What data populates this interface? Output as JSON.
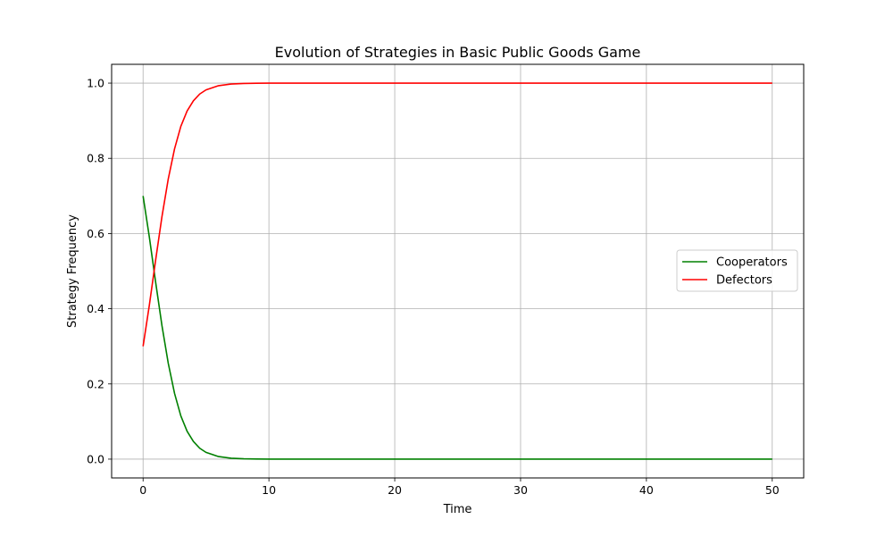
{
  "chart_data": {
    "type": "line",
    "title": "Evolution of Strategies in Basic Public Goods Game",
    "xlabel": "Time",
    "ylabel": "Strategy Frequency",
    "xlim": [
      -2.5,
      52.5
    ],
    "ylim": [
      -0.05,
      1.05
    ],
    "xticks": [
      "0",
      "10",
      "20",
      "30",
      "40",
      "50"
    ],
    "yticks": [
      "0.0",
      "0.2",
      "0.4",
      "0.6",
      "0.8",
      "1.0"
    ],
    "grid": true,
    "legend_position": "center-right",
    "series": [
      {
        "name": "Cooperators",
        "color": "#008000",
        "x": [
          0,
          0.5,
          1,
          1.5,
          2,
          2.5,
          3,
          3.5,
          4,
          4.5,
          5,
          6,
          7,
          8,
          9,
          10,
          12,
          15,
          20,
          25,
          30,
          35,
          40,
          45,
          50
        ],
        "y": [
          0.7,
          0.59,
          0.47,
          0.355,
          0.255,
          0.175,
          0.115,
          0.074,
          0.047,
          0.029,
          0.018,
          0.0068,
          0.0025,
          0.0009,
          0.0003,
          0.0001,
          0.0,
          0.0,
          0.0,
          0.0,
          0.0,
          0.0,
          0.0,
          0.0,
          0.0
        ]
      },
      {
        "name": "Defectors",
        "color": "#ff0000",
        "x": [
          0,
          0.5,
          1,
          1.5,
          2,
          2.5,
          3,
          3.5,
          4,
          4.5,
          5,
          6,
          7,
          8,
          9,
          10,
          12,
          15,
          20,
          25,
          30,
          35,
          40,
          45,
          50
        ],
        "y": [
          0.3,
          0.41,
          0.53,
          0.645,
          0.745,
          0.825,
          0.885,
          0.926,
          0.953,
          0.971,
          0.982,
          0.9932,
          0.9975,
          0.9991,
          0.9997,
          0.9999,
          1.0,
          1.0,
          1.0,
          1.0,
          1.0,
          1.0,
          1.0,
          1.0,
          1.0
        ]
      }
    ]
  }
}
